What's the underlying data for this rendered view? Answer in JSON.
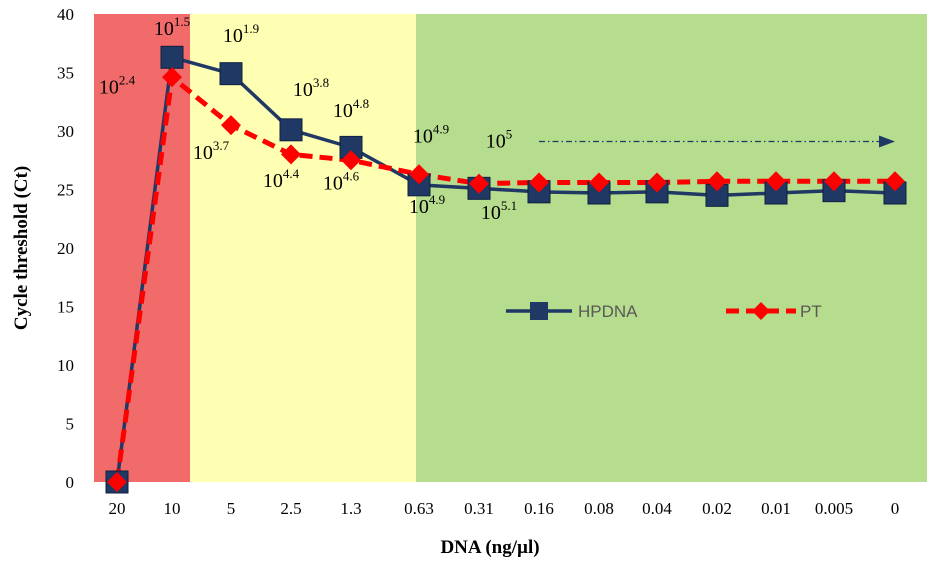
{
  "chart_data": {
    "type": "line",
    "xlabel": "DNA (ng/µl)",
    "ylabel": "Cycle threshold (Ct)",
    "categories": [
      "20",
      "10",
      "5",
      "2.5",
      "1.3",
      "0.63",
      "0.31",
      "0.16",
      "0.08",
      "0.04",
      "0.02",
      "0.01",
      "0.005",
      "0"
    ],
    "ylim": [
      0,
      40
    ],
    "yticks": [
      "0",
      "5",
      "10",
      "15",
      "20",
      "25",
      "30",
      "35",
      "40"
    ],
    "grid": false,
    "legend_position": "right-middle",
    "background_bands": [
      {
        "from_category": "20",
        "to_category": "10",
        "color": "#f26b6b"
      },
      {
        "from_category": "10",
        "to_category": "0.63",
        "color": "#ffffb3"
      },
      {
        "from_category": "0.63",
        "to_category": "0",
        "color": "#b6dc8e"
      }
    ],
    "series": [
      {
        "name": "HPDNA",
        "color": "#1f3864",
        "marker": "square",
        "line_style": "solid",
        "values": [
          0,
          36.3,
          34.9,
          30.1,
          28.6,
          25.4,
          25.1,
          24.8,
          24.7,
          24.8,
          24.5,
          24.7,
          24.9,
          24.7
        ]
      },
      {
        "name": "PT",
        "color": "#ff0000",
        "marker": "diamond",
        "line_style": "dashed",
        "values": [
          0,
          34.6,
          30.5,
          28.0,
          27.5,
          26.3,
          25.5,
          25.6,
          25.6,
          25.6,
          25.7,
          25.7,
          25.7,
          25.7
        ]
      }
    ],
    "annotations": [
      {
        "base": "10",
        "exp": "1.5",
        "category": "10",
        "y": 38.2,
        "dx": 0
      },
      {
        "base": "10",
        "exp": "1.9",
        "category": "5",
        "y": 37.6,
        "dx": 10
      },
      {
        "base": "10",
        "exp": "2.4",
        "category": "10",
        "y": 33.2,
        "dx": -55
      },
      {
        "base": "10",
        "exp": "3.8",
        "category": "2.5",
        "y": 33.0,
        "dx": 20
      },
      {
        "base": "10",
        "exp": "4.8",
        "category": "1.3",
        "y": 31.2,
        "dx": 0
      },
      {
        "base": "10",
        "exp": "3.7",
        "category": "5",
        "y": 27.6,
        "dx": -20
      },
      {
        "base": "10",
        "exp": "4.9",
        "category": "0.63",
        "y": 29.0,
        "dx": 12
      },
      {
        "base": "10",
        "exp": "5",
        "category": "0.31",
        "y": 28.6,
        "dx": 20
      },
      {
        "base": "10",
        "exp": "4.4",
        "category": "2.5",
        "y": 25.2,
        "dx": -10
      },
      {
        "base": "10",
        "exp": "4.6",
        "category": "1.3",
        "y": 25.0,
        "dx": -10
      },
      {
        "base": "10",
        "exp": "4.9",
        "category": "0.63",
        "y": 23.0,
        "dx": 8
      },
      {
        "base": "10",
        "exp": "5.1",
        "category": "0.31",
        "y": 22.5,
        "dx": 20
      }
    ],
    "arrow": {
      "from_category": "0.16",
      "to_category": "0",
      "y": 29.1,
      "color": "#1f3864",
      "style": "dash-dot"
    }
  }
}
